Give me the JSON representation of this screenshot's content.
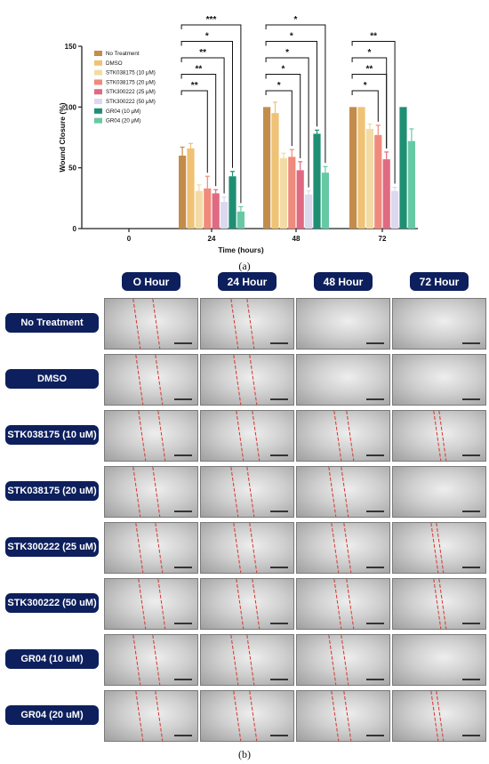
{
  "chart_data": {
    "type": "bar",
    "categories": [
      "0",
      "24",
      "48",
      "72"
    ],
    "xlabel": "Time (hours)",
    "ylabel": "Wound Closure (%)",
    "ylim": [
      0,
      150
    ],
    "yticks": [
      0,
      50,
      100,
      150
    ],
    "legend_position": "top-left",
    "series": [
      {
        "name": "No Treatment",
        "color": "#c48c4a",
        "values": [
          0,
          60,
          100,
          100
        ],
        "errors": [
          0,
          7,
          0,
          0
        ]
      },
      {
        "name": "DMSO",
        "color": "#efc275",
        "values": [
          0,
          66,
          95,
          100
        ],
        "errors": [
          0,
          4,
          9,
          0
        ]
      },
      {
        "name": "STK038175 (10 μM)",
        "color": "#f2dba4",
        "values": [
          0,
          31,
          58,
          82
        ],
        "errors": [
          0,
          5,
          4,
          4
        ]
      },
      {
        "name": "STK038175 (20 μM)",
        "color": "#ef8a7c",
        "values": [
          0,
          33,
          59,
          77
        ],
        "errors": [
          0,
          10,
          6,
          8
        ]
      },
      {
        "name": "STK300222 (25 μM)",
        "color": "#e06a82",
        "values": [
          0,
          29,
          48,
          57
        ],
        "errors": [
          0,
          3,
          7,
          6
        ]
      },
      {
        "name": "STK300222 (50 μM)",
        "color": "#dcd8ef",
        "values": [
          0,
          22,
          28,
          31
        ],
        "errors": [
          0,
          4,
          3,
          3
        ]
      },
      {
        "name": "GR04 (10 μM)",
        "color": "#1f8f74",
        "values": [
          0,
          43,
          78,
          100
        ],
        "errors": [
          0,
          4,
          3,
          0
        ]
      },
      {
        "name": "GR04 (20 μM)",
        "color": "#66c9a4",
        "values": [
          0,
          14,
          46,
          72
        ],
        "errors": [
          0,
          4,
          5,
          10
        ]
      }
    ],
    "significance": [
      {
        "time": "24",
        "label": "**",
        "from": 0,
        "to": 4
      },
      {
        "time": "24",
        "label": "**",
        "from": 0,
        "to": 5
      },
      {
        "time": "24",
        "label": "**",
        "from": 0,
        "to": 6
      },
      {
        "time": "24",
        "label": "*",
        "from": 0,
        "to": 7
      },
      {
        "time": "24",
        "label": "***",
        "from": 0,
        "to": 8
      },
      {
        "time": "48",
        "label": "*",
        "from": 0,
        "to": 4
      },
      {
        "time": "48",
        "label": "*",
        "from": 0,
        "to": 5
      },
      {
        "time": "48",
        "label": "*",
        "from": 0,
        "to": 6
      },
      {
        "time": "48",
        "label": "*",
        "from": 0,
        "to": 7
      },
      {
        "time": "48",
        "label": "*",
        "from": 0,
        "to": 8
      },
      {
        "time": "72",
        "label": "*",
        "from": 0,
        "to": 4
      },
      {
        "time": "72",
        "label": "**",
        "from": 0,
        "to": 5
      },
      {
        "time": "72",
        "label": "*",
        "from": 0,
        "to": 5
      },
      {
        "time": "72",
        "label": "**",
        "from": 0,
        "to": 6
      }
    ]
  },
  "labels": {
    "panel_a": "(a)",
    "panel_b": "(b)"
  },
  "grid": {
    "columns": [
      "O Hour",
      "24 Hour",
      "48 Hour",
      "72 Hour"
    ],
    "rows": [
      "No Treatment",
      "DMSO",
      "STK038175 (10 uM)",
      "STK038175 (20 uM)",
      "STK300222 (25 uM)",
      "STK300222 (50 uM)",
      "GR04 (10 uM)",
      "GR04 (20 uM)"
    ],
    "wound_line_color": "#d9342b",
    "wound_lines": [
      [
        true,
        true,
        false,
        false
      ],
      [
        true,
        true,
        false,
        false
      ],
      [
        true,
        true,
        true,
        true
      ],
      [
        true,
        true,
        true,
        false
      ],
      [
        true,
        true,
        true,
        true
      ],
      [
        true,
        true,
        true,
        true
      ],
      [
        true,
        true,
        true,
        false
      ],
      [
        true,
        true,
        true,
        true
      ]
    ]
  }
}
